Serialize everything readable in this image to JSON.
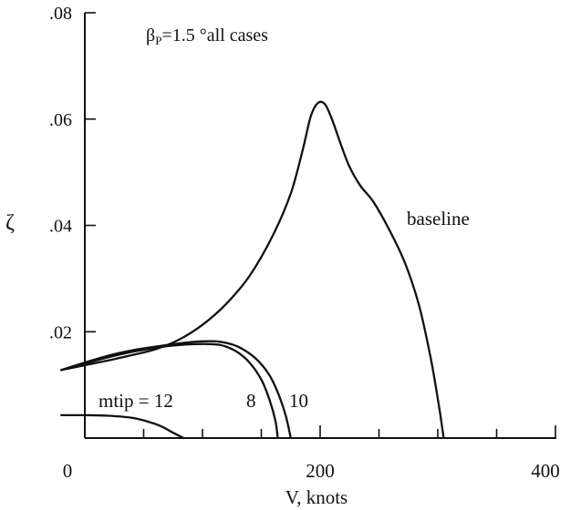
{
  "chart_data": {
    "type": "line",
    "title": "",
    "annotation": {
      "beta_symbol": "β",
      "beta_subscript": "P",
      "beta_text": "=1.5 °all cases"
    },
    "xlabel": "V, knots",
    "ylabel": "ζ",
    "xlim": [
      0,
      400
    ],
    "ylim": [
      0,
      0.08
    ],
    "x_ticks": [
      0,
      200,
      400
    ],
    "x_tick_labels": [
      "0",
      "200",
      "400"
    ],
    "x_minor_ticks": [
      50,
      100,
      150,
      250,
      300,
      350
    ],
    "y_ticks": [
      0.02,
      0.04,
      0.06,
      0.08
    ],
    "y_tick_labels": [
      ".02",
      ".04",
      ".06",
      ".08"
    ],
    "grid": false,
    "series": [
      {
        "name": "baseline",
        "points": [
          [
            -20,
            0.0128
          ],
          [
            0,
            0.0137
          ],
          [
            20,
            0.0146
          ],
          [
            40,
            0.0156
          ],
          [
            60,
            0.0167
          ],
          [
            80,
            0.0185
          ],
          [
            100,
            0.0213
          ],
          [
            120,
            0.0252
          ],
          [
            140,
            0.0305
          ],
          [
            160,
            0.0382
          ],
          [
            175,
            0.046
          ],
          [
            185,
            0.054
          ],
          [
            192,
            0.0605
          ],
          [
            198,
            0.063
          ],
          [
            204,
            0.0628
          ],
          [
            210,
            0.06
          ],
          [
            218,
            0.055
          ],
          [
            225,
            0.051
          ],
          [
            234,
            0.0475
          ],
          [
            245,
            0.0445
          ],
          [
            258,
            0.0395
          ],
          [
            272,
            0.033
          ],
          [
            284,
            0.025
          ],
          [
            294,
            0.015
          ],
          [
            301,
            0.006
          ],
          [
            305,
            0.0
          ]
        ]
      },
      {
        "name": "10",
        "points": [
          [
            -20,
            0.0128
          ],
          [
            0,
            0.0142
          ],
          [
            20,
            0.0155
          ],
          [
            40,
            0.0165
          ],
          [
            60,
            0.0172
          ],
          [
            80,
            0.0178
          ],
          [
            100,
            0.0182
          ],
          [
            115,
            0.0181
          ],
          [
            130,
            0.0172
          ],
          [
            145,
            0.015
          ],
          [
            157,
            0.0118
          ],
          [
            165,
            0.008
          ],
          [
            171,
            0.004
          ],
          [
            175,
            0.0
          ]
        ]
      },
      {
        "name": "8",
        "points": [
          [
            -20,
            0.0128
          ],
          [
            0,
            0.014
          ],
          [
            20,
            0.0152
          ],
          [
            40,
            0.0162
          ],
          [
            60,
            0.017
          ],
          [
            80,
            0.0175
          ],
          [
            100,
            0.0177
          ],
          [
            115,
            0.0175
          ],
          [
            128,
            0.0164
          ],
          [
            140,
            0.0142
          ],
          [
            150,
            0.011
          ],
          [
            157,
            0.0072
          ],
          [
            162,
            0.0032
          ],
          [
            164,
            0.0
          ]
        ]
      },
      {
        "name": "mtip = 12",
        "points": [
          [
            -20,
            0.0043
          ],
          [
            0,
            0.0043
          ],
          [
            20,
            0.0042
          ],
          [
            40,
            0.0038
          ],
          [
            55,
            0.003
          ],
          [
            65,
            0.0022
          ],
          [
            75,
            0.001
          ],
          [
            84,
            0.0
          ]
        ]
      }
    ]
  }
}
